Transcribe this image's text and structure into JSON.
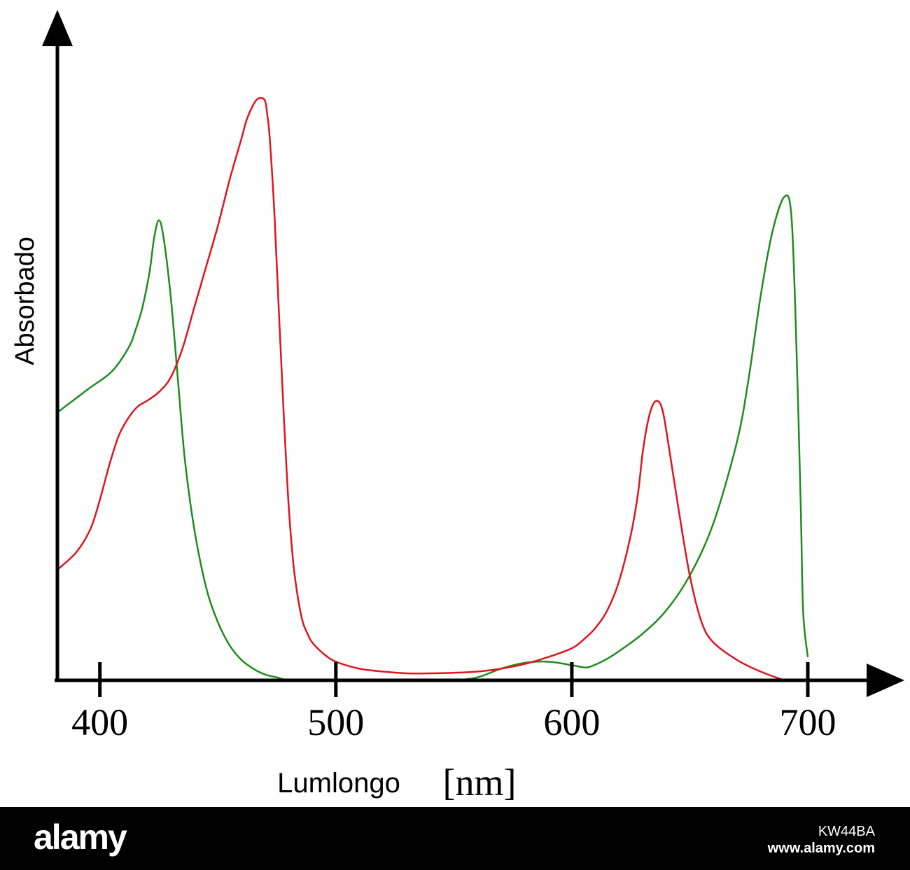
{
  "chart_data": {
    "type": "line",
    "xlabel": "Lumlongo",
    "xunit": "[nm]",
    "ylabel": "Absorbado",
    "xlim": [
      382,
      740
    ],
    "ylim": [
      0,
      100
    ],
    "xticks": [
      400,
      500,
      600,
      700
    ],
    "y_tick_labels": false,
    "grid": false,
    "legend": "none",
    "series": [
      {
        "color": "#1e8c1e",
        "x": [
          382,
          395,
          405,
          412,
          415,
          418,
          421,
          423,
          425,
          427,
          430,
          433,
          436,
          440,
          445,
          450,
          455,
          460,
          465,
          470,
          475,
          480,
          490,
          500,
          510,
          520,
          530,
          540,
          550,
          560,
          570,
          580,
          590,
          600,
          606,
          610,
          615,
          620,
          630,
          640,
          650,
          660,
          670,
          675,
          680,
          685,
          690,
          693,
          695,
          697,
          698,
          700
        ],
        "y": [
          46,
          50,
          53,
          57,
          60,
          64,
          70,
          76,
          79,
          76,
          66,
          52,
          38,
          26,
          16,
          10,
          6,
          3.5,
          2,
          1,
          0.5,
          0,
          0,
          0,
          0,
          0,
          0,
          0,
          0,
          0.5,
          2,
          3,
          3.2,
          2.6,
          2.2,
          2.7,
          3.7,
          5,
          8,
          12,
          18,
          27,
          41,
          52,
          66,
          77,
          83,
          80,
          60,
          30,
          12,
          4
        ]
      },
      {
        "color": "#e0141e",
        "x": [
          382,
          390,
          396,
          400,
          404,
          408,
          412,
          416,
          420,
          425,
          430,
          435,
          440,
          445,
          450,
          455,
          460,
          462,
          464,
          466,
          468,
          470,
          471,
          472,
          474,
          476,
          478,
          480,
          482,
          484,
          486,
          488,
          490,
          495,
          500,
          510,
          520,
          530,
          540,
          550,
          560,
          570,
          580,
          590,
          600,
          605,
          610,
          615,
          620,
          625,
          628,
          630,
          632,
          634,
          636,
          638,
          640,
          645,
          650,
          655,
          660,
          670,
          680,
          690
        ],
        "y": [
          19,
          22,
          26,
          31,
          37,
          42,
          45,
          47,
          48,
          49.5,
          52,
          57,
          64,
          71,
          78,
          86,
          93,
          96,
          98,
          99.5,
          100,
          99.5,
          97,
          93,
          80,
          62,
          45,
          30,
          20,
          14,
          10,
          8,
          6.5,
          4.5,
          3.2,
          2,
          1.5,
          1.2,
          1.2,
          1.3,
          1.5,
          2,
          2.8,
          4,
          5.5,
          7,
          9,
          12,
          17,
          25,
          32,
          39,
          44,
          47,
          48,
          47,
          43,
          30,
          18,
          10,
          6.5,
          3.5,
          1.5,
          0
        ]
      }
    ]
  },
  "footer": {
    "logo": "alamy",
    "image_id": "KW44BA",
    "url": "www.alamy.com"
  }
}
